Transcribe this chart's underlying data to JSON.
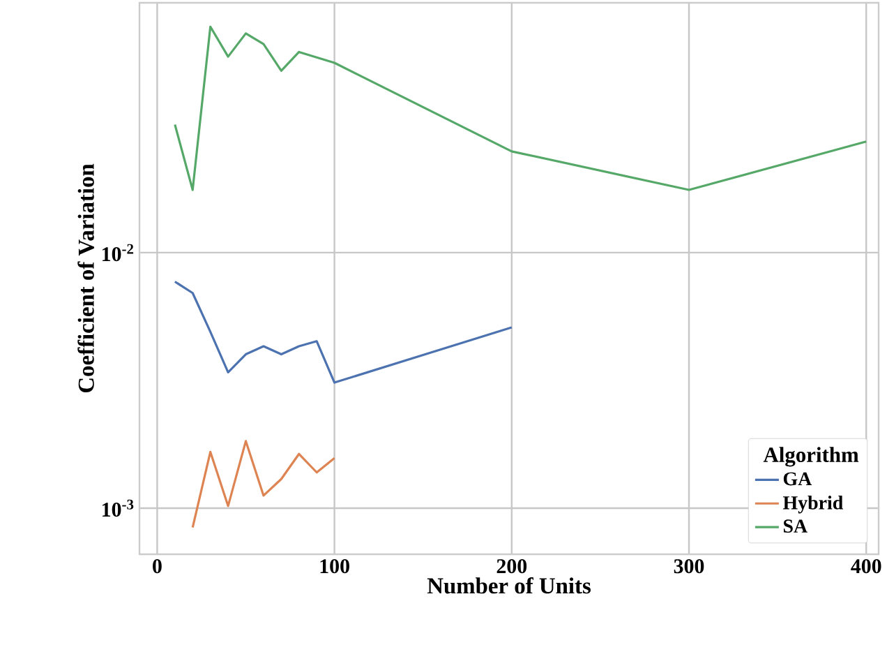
{
  "chart_data": {
    "type": "line",
    "xlabel": "Number of Units",
    "ylabel": "Coefficient of Variation",
    "legend_title": "Algorithm",
    "log": "y",
    "grid": true,
    "legend": "bottom right",
    "marker": "none",
    "line_style": "solid",
    "xlim": [
      -10,
      407
    ],
    "ylim": [
      0.00066,
      0.095
    ],
    "xticks": [
      0,
      100,
      200,
      300,
      400
    ],
    "yticks": [
      {
        "value": 0.001,
        "label": "10$^{-3}$"
      },
      {
        "value": 0.01,
        "label": "10$^{-2}$"
      }
    ],
    "series": [
      {
        "name": "GA",
        "color": "#4c72b0",
        "x": [
          10,
          20,
          30,
          40,
          50,
          60,
          70,
          80,
          90,
          100,
          200
        ],
        "values": [
          0.0077,
          0.00695,
          0.0049,
          0.0034,
          0.004,
          0.0043,
          0.004,
          0.0043,
          0.0045,
          0.0031,
          0.0051
        ]
      },
      {
        "name": "Hybrid",
        "color": "#dd8452",
        "x": [
          20,
          30,
          40,
          50,
          60,
          70,
          80,
          90,
          100
        ],
        "values": [
          0.00084,
          0.00166,
          0.00102,
          0.00183,
          0.00112,
          0.0013,
          0.00163,
          0.00138,
          0.00157
        ]
      },
      {
        "name": "SA",
        "color": "#55a868",
        "x": [
          10,
          20,
          30,
          40,
          50,
          60,
          70,
          80,
          100,
          200,
          300,
          400
        ],
        "values": [
          0.0317,
          0.0176,
          0.0766,
          0.0585,
          0.0721,
          0.0655,
          0.0515,
          0.061,
          0.0553,
          0.0249,
          0.0176,
          0.0272
        ]
      }
    ]
  }
}
